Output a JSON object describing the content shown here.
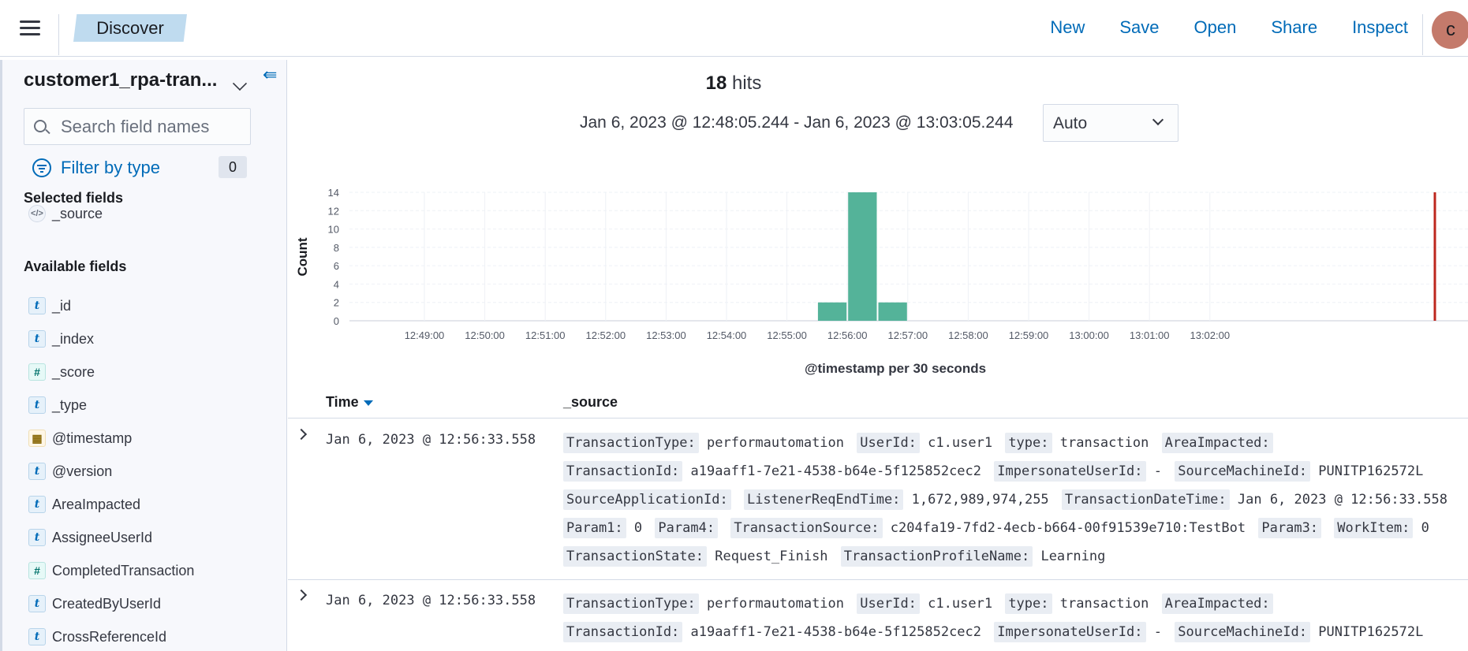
{
  "header": {
    "breadcrumb": "Discover",
    "nav": [
      "New",
      "Save",
      "Open",
      "Share",
      "Inspect"
    ],
    "avatar_initial": "c"
  },
  "sidebar": {
    "index_pattern": "customer1_rpa-tran...",
    "search_placeholder": "Search field names",
    "filter_label": "Filter by type",
    "filter_count": "0",
    "selected_title": "Selected fields",
    "selected_fields": [
      {
        "type": "source",
        "name": "_source"
      }
    ],
    "available_title": "Available fields",
    "available_fields": [
      {
        "type": "t",
        "name": "_id"
      },
      {
        "type": "t",
        "name": "_index"
      },
      {
        "type": "#",
        "name": "_score"
      },
      {
        "type": "t",
        "name": "_type"
      },
      {
        "type": "date",
        "name": "@timestamp"
      },
      {
        "type": "t",
        "name": "@version"
      },
      {
        "type": "t",
        "name": "AreaImpacted"
      },
      {
        "type": "t",
        "name": "AssigneeUserId"
      },
      {
        "type": "#",
        "name": "CompletedTransaction"
      },
      {
        "type": "t",
        "name": "CreatedByUserId"
      },
      {
        "type": "t",
        "name": "CrossReferenceId"
      }
    ]
  },
  "main": {
    "hits_count": "18",
    "hits_label": "hits",
    "time_range": "Jan 6, 2023 @ 12:48:05.244 - Jan 6, 2023 @ 13:03:05.244",
    "interval": "Auto"
  },
  "chart_data": {
    "type": "bar",
    "ylabel": "Count",
    "xlabel": "@timestamp per 30 seconds",
    "yticks": [
      0,
      2,
      4,
      6,
      8,
      10,
      12,
      14
    ],
    "ylim": [
      0,
      14
    ],
    "xticks": [
      "12:49:00",
      "12:50:00",
      "12:51:00",
      "12:52:00",
      "12:53:00",
      "12:54:00",
      "12:55:00",
      "12:56:00",
      "12:57:00",
      "12:58:00",
      "12:59:00",
      "13:00:00",
      "13:01:00",
      "13:02:00"
    ],
    "bars": [
      {
        "x": "12:55:30",
        "value": 2
      },
      {
        "x": "12:56:00",
        "value": 14
      },
      {
        "x": "12:56:30",
        "value": 2
      }
    ],
    "bar_color": "#54b399",
    "now_marker_color": "#bd271e"
  },
  "table": {
    "col_time": "Time",
    "col_source": "_source",
    "rows": [
      {
        "time": "Jan 6, 2023 @ 12:56:33.558",
        "fields": [
          {
            "k": "TransactionType:",
            "v": "performautomation"
          },
          {
            "k": "UserId:",
            "v": "c1.user1"
          },
          {
            "k": "type:",
            "v": "transaction"
          },
          {
            "k": "AreaImpacted:",
            "v": ""
          },
          {
            "k": "TransactionId:",
            "v": "a19aaff1-7e21-4538-b64e-5f125852cec2"
          },
          {
            "k": "ImpersonateUserId:",
            "v": " - "
          },
          {
            "k": "SourceMachineId:",
            "v": "PUNITP162572L"
          },
          {
            "k": "SourceApplicationId:",
            "v": ""
          },
          {
            "k": "ListenerReqEndTime:",
            "v": "1,672,989,974,255"
          },
          {
            "k": "TransactionDateTime:",
            "v": "Jan 6, 2023 @ 12:56:33.558"
          },
          {
            "k": "Param1:",
            "v": "0"
          },
          {
            "k": "Param4:",
            "v": ""
          },
          {
            "k": "TransactionSource:",
            "v": "c204fa19-7fd2-4ecb-b664-00f91539e710:TestBot"
          },
          {
            "k": "Param3:",
            "v": ""
          },
          {
            "k": "WorkItem:",
            "v": "0"
          },
          {
            "k": "TransactionState:",
            "v": "Request_Finish"
          },
          {
            "k": "TransactionProfileName:",
            "v": "Learning"
          }
        ]
      },
      {
        "time": "Jan 6, 2023 @ 12:56:33.558",
        "fields": [
          {
            "k": "TransactionType:",
            "v": "performautomation"
          },
          {
            "k": "UserId:",
            "v": "c1.user1"
          },
          {
            "k": "type:",
            "v": "transaction"
          },
          {
            "k": "AreaImpacted:",
            "v": ""
          },
          {
            "k": "TransactionId:",
            "v": "a19aaff1-7e21-4538-b64e-5f125852cec2"
          },
          {
            "k": "ImpersonateUserId:",
            "v": " - "
          },
          {
            "k": "SourceMachineId:",
            "v": "PUNITP162572L"
          }
        ]
      }
    ]
  }
}
